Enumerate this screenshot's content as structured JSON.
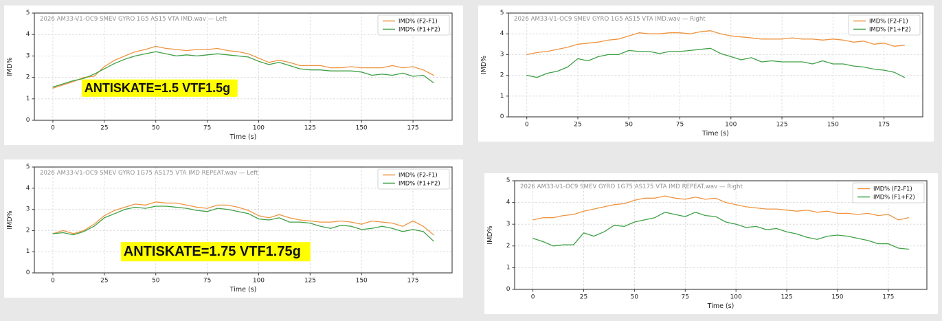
{
  "colors": {
    "background": "#e8e8e8",
    "panel": "#ffffff",
    "orange": "#ee9440",
    "green": "#3fa046",
    "title_gray": "#909090",
    "axis": "#3a3a3a",
    "grid": "#d2d2d2",
    "annotation_bg": "#ffff00",
    "annotation_text": "#111111",
    "legend_border": "#c8c8c8"
  },
  "chart_data": [
    {
      "id": "top-left",
      "type": "line",
      "title": "2026 AM33-V1-OC9 SMEV GYRO 1G5 AS15 VTA IMD.wav — Left",
      "xlabel": "Time (s)",
      "ylabel": "IMD%",
      "xlim": [
        -9,
        194
      ],
      "ylim": [
        0,
        5
      ],
      "xticks": [
        0,
        25,
        50,
        75,
        100,
        125,
        150,
        175
      ],
      "yticks": [
        0,
        1,
        2,
        3,
        4,
        5
      ],
      "x_start": 0,
      "x_step": 5,
      "grid": true,
      "legend_position": "upper right",
      "legend": [
        "IMD% (F2-F1)",
        "IMD% (F1+F2)"
      ],
      "series": [
        {
          "name": "IMD% (F2-F1)",
          "color_key": "orange",
          "values": [
            1.5,
            1.65,
            1.8,
            2.0,
            2.05,
            2.5,
            2.8,
            3.0,
            3.2,
            3.3,
            3.45,
            3.35,
            3.3,
            3.25,
            3.3,
            3.3,
            3.35,
            3.25,
            3.2,
            3.1,
            2.9,
            2.7,
            2.8,
            2.7,
            2.55,
            2.55,
            2.55,
            2.45,
            2.45,
            2.5,
            2.45,
            2.45,
            2.45,
            2.55,
            2.45,
            2.5,
            2.35,
            2.1
          ]
        },
        {
          "name": "IMD% (F1+F2)",
          "color_key": "green",
          "values": [
            1.55,
            1.7,
            1.85,
            1.95,
            2.15,
            2.4,
            2.65,
            2.85,
            3.0,
            3.1,
            3.2,
            3.1,
            3.0,
            3.05,
            3.0,
            3.05,
            3.1,
            3.05,
            3.0,
            2.95,
            2.75,
            2.6,
            2.7,
            2.55,
            2.4,
            2.35,
            2.35,
            2.3,
            2.3,
            2.3,
            2.25,
            2.1,
            2.15,
            2.1,
            2.2,
            2.05,
            2.1,
            1.75
          ]
        }
      ],
      "annotation": {
        "text": "ANTISKATE=1.5 VTF1.5g",
        "x": 14,
        "y": 1.5,
        "font_size": 18
      }
    },
    {
      "id": "top-right",
      "type": "line",
      "title": "2026 AM33-V1-OC9 SMEV GYRO 1G5 AS15 VTA IMD.wav — Right",
      "xlabel": "Time (s)",
      "ylabel": "IMD%",
      "xlim": [
        -9,
        194
      ],
      "ylim": [
        0,
        5
      ],
      "xticks": [
        0,
        25,
        50,
        75,
        100,
        125,
        150,
        175
      ],
      "yticks": [
        0,
        1,
        2,
        3,
        4,
        5
      ],
      "x_start": 0,
      "x_step": 5,
      "grid": true,
      "legend_position": "upper right",
      "legend": [
        "IMD% (F2-F1)",
        "IMD% (F1+F2)"
      ],
      "series": [
        {
          "name": "IMD% (F2-F1)",
          "color_key": "orange",
          "values": [
            3.0,
            3.1,
            3.15,
            3.25,
            3.35,
            3.5,
            3.55,
            3.6,
            3.7,
            3.75,
            3.9,
            4.05,
            4.0,
            4.0,
            4.05,
            4.05,
            4.0,
            4.1,
            4.15,
            4.0,
            3.9,
            3.85,
            3.8,
            3.75,
            3.75,
            3.75,
            3.8,
            3.75,
            3.75,
            3.7,
            3.75,
            3.7,
            3.6,
            3.65,
            3.5,
            3.55,
            3.4,
            3.45
          ]
        },
        {
          "name": "IMD% (F1+F2)",
          "color_key": "green",
          "values": [
            2.0,
            1.9,
            2.1,
            2.2,
            2.4,
            2.8,
            2.7,
            2.9,
            3.0,
            3.0,
            3.2,
            3.15,
            3.15,
            3.05,
            3.15,
            3.15,
            3.2,
            3.25,
            3.3,
            3.05,
            2.9,
            2.75,
            2.85,
            2.65,
            2.7,
            2.65,
            2.65,
            2.65,
            2.55,
            2.7,
            2.55,
            2.55,
            2.45,
            2.4,
            2.3,
            2.25,
            2.15,
            1.9
          ]
        }
      ],
      "annotation": null
    },
    {
      "id": "bottom-left",
      "type": "line",
      "title": "2026 AM33-V1-OC9 SMEV GYRO 1G75 AS175 VTA IMD REPEAT.wav — Left",
      "xlabel": "Time (s)",
      "ylabel": "IMD%",
      "xlim": [
        -9,
        194
      ],
      "ylim": [
        0,
        5
      ],
      "xticks": [
        0,
        25,
        50,
        75,
        100,
        125,
        150,
        175
      ],
      "yticks": [
        0,
        1,
        2,
        3,
        4,
        5
      ],
      "x_start": 0,
      "x_step": 5,
      "grid": true,
      "legend_position": "upper right",
      "legend": [
        "IMD% (F2-F1)",
        "IMD% (F1+F2)"
      ],
      "series": [
        {
          "name": "IMD% (F2-F1)",
          "color_key": "orange",
          "values": [
            1.85,
            2.0,
            1.85,
            2.0,
            2.3,
            2.7,
            2.95,
            3.1,
            3.25,
            3.2,
            3.35,
            3.3,
            3.3,
            3.2,
            3.1,
            3.05,
            3.2,
            3.2,
            3.1,
            2.95,
            2.7,
            2.6,
            2.75,
            2.6,
            2.5,
            2.45,
            2.4,
            2.4,
            2.45,
            2.4,
            2.3,
            2.45,
            2.4,
            2.35,
            2.2,
            2.45,
            2.2,
            1.8
          ]
        },
        {
          "name": "IMD% (F1+F2)",
          "color_key": "green",
          "values": [
            1.85,
            1.9,
            1.8,
            1.95,
            2.2,
            2.6,
            2.8,
            3.0,
            3.1,
            3.05,
            3.15,
            3.15,
            3.1,
            3.05,
            2.95,
            2.9,
            3.05,
            3.0,
            2.9,
            2.8,
            2.55,
            2.5,
            2.6,
            2.4,
            2.4,
            2.35,
            2.2,
            2.1,
            2.25,
            2.2,
            2.05,
            2.1,
            2.2,
            2.1,
            1.95,
            2.05,
            1.95,
            1.5
          ]
        }
      ],
      "annotation": {
        "text": "ANTISKATE=1.75 VTF1.75g",
        "x": 33,
        "y": 1.0,
        "font_size": 20
      }
    },
    {
      "id": "bottom-right",
      "type": "line",
      "title": "2026 AM33-V1-OC9 SMEV GYRO 1G75 AS175 VTA IMD REPEAT.wav — Right",
      "xlabel": "Time (s)",
      "ylabel": "IMD%",
      "xlim": [
        -9,
        194
      ],
      "ylim": [
        0,
        5
      ],
      "xticks": [
        0,
        25,
        50,
        75,
        100,
        125,
        150,
        175
      ],
      "yticks": [
        0,
        1,
        2,
        3,
        4,
        5
      ],
      "x_start": 0,
      "x_step": 5,
      "grid": true,
      "legend_position": "upper right",
      "legend": [
        "IMD% (F2-F1)",
        "IMD% (F1+F2)"
      ],
      "series": [
        {
          "name": "IMD% (F2-F1)",
          "color_key": "orange",
          "values": [
            3.2,
            3.3,
            3.3,
            3.4,
            3.45,
            3.6,
            3.7,
            3.8,
            3.9,
            3.95,
            4.1,
            4.2,
            4.2,
            4.3,
            4.2,
            4.15,
            4.25,
            4.15,
            4.2,
            4.0,
            3.9,
            3.8,
            3.75,
            3.7,
            3.7,
            3.65,
            3.6,
            3.65,
            3.55,
            3.6,
            3.5,
            3.5,
            3.45,
            3.5,
            3.4,
            3.45,
            3.2,
            3.3
          ]
        },
        {
          "name": "IMD% (F1+F2)",
          "color_key": "green",
          "values": [
            2.35,
            2.2,
            2.0,
            2.05,
            2.05,
            2.6,
            2.45,
            2.65,
            2.95,
            2.9,
            3.1,
            3.2,
            3.3,
            3.55,
            3.45,
            3.35,
            3.55,
            3.4,
            3.35,
            3.1,
            3.0,
            2.85,
            2.9,
            2.75,
            2.8,
            2.65,
            2.55,
            2.4,
            2.3,
            2.45,
            2.5,
            2.45,
            2.35,
            2.25,
            2.1,
            2.1,
            1.9,
            1.85
          ]
        }
      ],
      "annotation": null
    }
  ]
}
